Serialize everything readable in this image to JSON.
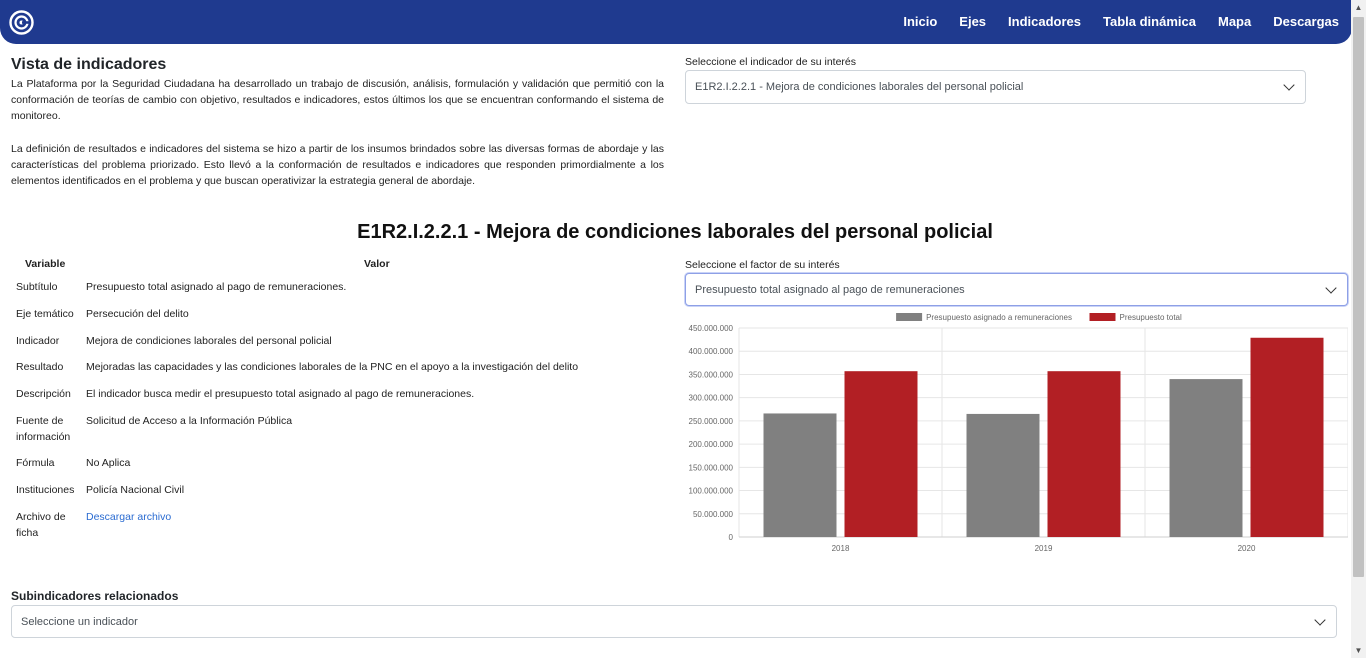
{
  "nav": {
    "links": [
      "Inicio",
      "Ejes",
      "Indicadores",
      "Tabla dinámica",
      "Mapa",
      "Descargas"
    ]
  },
  "intro": {
    "title": "Vista de indicadores",
    "paragraph1": "La Plataforma por la Seguridad Ciudadana ha desarrollado un trabajo de discusión, análisis, formulación y validación que permitió con la conformación de teorías de cambio con objetivo, resultados e indicadores, estos últimos los que se encuentran conformando el sistema de monitoreo.",
    "paragraph2": "La definición de resultados e indicadores del sistema se hizo a partir de los insumos brindados sobre las diversas formas de abordaje y las características del problema priorizado. Esto llevó a la conformación de resultados e indicadores que responden primordialmente a los elementos identificados en el problema y que buscan operativizar la estrategia general de abordaje."
  },
  "indicator_select": {
    "label": "Seleccione el indicador de su interés",
    "value": "E1R2.I.2.2.1 - Mejora de condiciones laborales del personal policial"
  },
  "main_title": "E1R2.I.2.2.1 - Mejora de condiciones laborales del personal policial",
  "table": {
    "header_variable": "Variable",
    "header_valor": "Valor",
    "rows": [
      {
        "key": "Subtítulo",
        "value": "Presupuesto total asignado al pago de remuneraciones."
      },
      {
        "key": "Eje temático",
        "value": "Persecución del delito"
      },
      {
        "key": "Indicador",
        "value": "Mejora de condiciones laborales del personal policial"
      },
      {
        "key": "Resultado",
        "value": "Mejoradas las capacidades y las condiciones laborales de la PNC en el apoyo a la investigación del delito"
      },
      {
        "key": "Descripción",
        "value": "El indicador busca medir el presupuesto total asignado al pago de remuneraciones."
      },
      {
        "key": "Fuente de información",
        "value": "Solicitud de Acceso a la Información Pública"
      },
      {
        "key": "Fórmula",
        "value": "No Aplica"
      },
      {
        "key": "Instituciones",
        "value": "Policía Nacional Civil"
      },
      {
        "key": "Archivo de ficha",
        "value": "Descargar archivo"
      }
    ]
  },
  "factor_select": {
    "label": "Seleccione el factor de su interés",
    "value": "Presupuesto total asignado al pago de remuneraciones"
  },
  "chart_data": {
    "type": "bar",
    "categories": [
      "2018",
      "2019",
      "2020"
    ],
    "series": [
      {
        "name": "Presupuesto asignado a remuneraciones",
        "values": [
          266000000,
          265000000,
          340000000
        ],
        "color": "#808080"
      },
      {
        "name": "Presupuesto total",
        "values": [
          357000000,
          357000000,
          429000000
        ],
        "color": "#b21f24"
      }
    ],
    "ylim": [
      0,
      450000000
    ],
    "yticks": [
      "0",
      "50.000.000",
      "100.000.000",
      "150.000.000",
      "200.000.000",
      "250.000.000",
      "300.000.000",
      "350.000.000",
      "400.000.000",
      "450.000.000"
    ],
    "legend": "top",
    "grid": true
  },
  "subindicators": {
    "title": "Subindicadores relacionados",
    "placeholder": "Seleccione un indicador"
  }
}
